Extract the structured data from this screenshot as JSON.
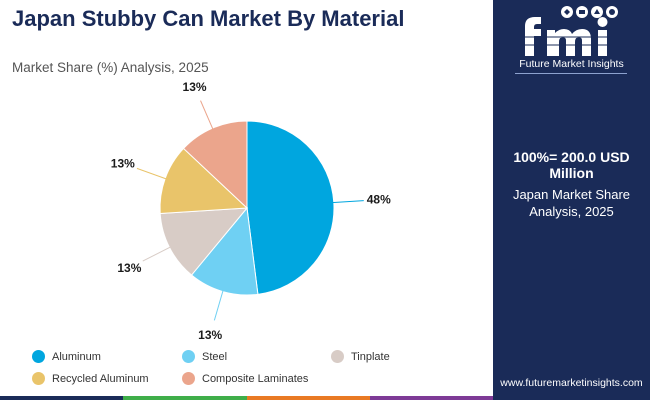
{
  "title": "Japan Stubby Can Market By Material",
  "subtitle": "Market Share (%) Analysis, 2025",
  "chart_data": {
    "type": "pie",
    "title": "Japan Stubby Can Market By Material",
    "subtitle": "Market Share (%) Analysis, 2025",
    "categories": [
      "Aluminum",
      "Steel",
      "Tinplate",
      "Recycled Aluminum",
      "Composite Laminates"
    ],
    "values": [
      48,
      13,
      13,
      13,
      13
    ],
    "labels": [
      "48%",
      "13%",
      "13%",
      "13%",
      "13%"
    ],
    "colors": [
      "#00a6df",
      "#6fd0f3",
      "#d8ccc6",
      "#e9c46a",
      "#eba58c"
    ],
    "legend": "bottom"
  },
  "sidebar": {
    "logo_text": "Future Market Insights",
    "total": "100%= 200.0 USD Million",
    "caption": "Japan Market Share Analysis, 2025",
    "website": "www.futuremarketinsights.com"
  },
  "bottom_bar_colors": [
    "#1a2b58",
    "#3fae49",
    "#e97a24",
    "#7e3a96"
  ]
}
